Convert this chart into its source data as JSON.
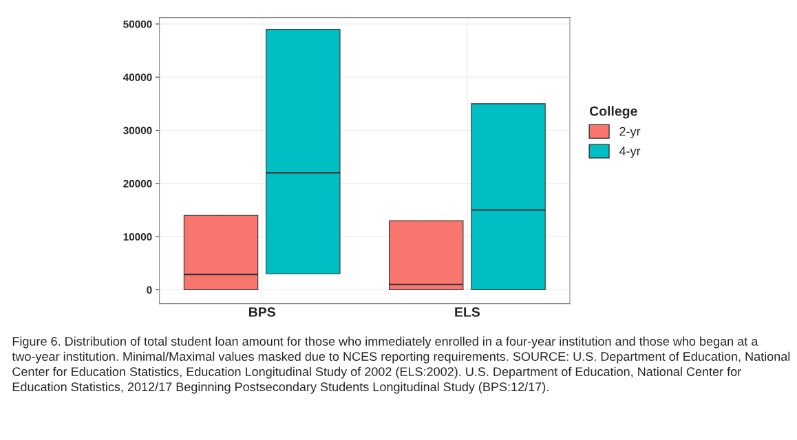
{
  "chart_data": {
    "type": "box",
    "categories": [
      "BPS",
      "ELS"
    ],
    "legend_title": "College",
    "legend": "right",
    "grid": true,
    "ylim": [
      -2600,
      51200
    ],
    "yticks": [
      0,
      10000,
      20000,
      30000,
      40000,
      50000
    ],
    "series": [
      {
        "name": "2-yr",
        "color": "#f8766d",
        "boxes": [
          {
            "low": 0,
            "q1": 0,
            "median": 2900,
            "q3": 14000,
            "high": 14000
          },
          {
            "low": 0,
            "q1": 0,
            "median": 1000,
            "q3": 13000,
            "high": 13000
          }
        ]
      },
      {
        "name": "4-yr",
        "color": "#00bfc4",
        "boxes": [
          {
            "low": 3000,
            "q1": 3000,
            "median": 22000,
            "q3": 49000,
            "high": 49000
          },
          {
            "low": 0,
            "q1": 0,
            "median": 15000,
            "q3": 35000,
            "high": 35000
          }
        ]
      }
    ],
    "annotations": [
      "Figure 6. Distribution of total student loan amount for those who immediately enrolled in a four-year institution and those who began at a two-year institution. Minimal/Maximal values masked due to NCES reporting requirements. SOURCE: U.S. Department of Education, National Center for Education Statistics, Education Longitudinal Study of 2002 (ELS:2002). U.S. Department of Education, National Center for Education Statistics, 2012/17 Beginning Postsecondary Students Longitudinal Study (BPS:12/17)."
    ]
  }
}
